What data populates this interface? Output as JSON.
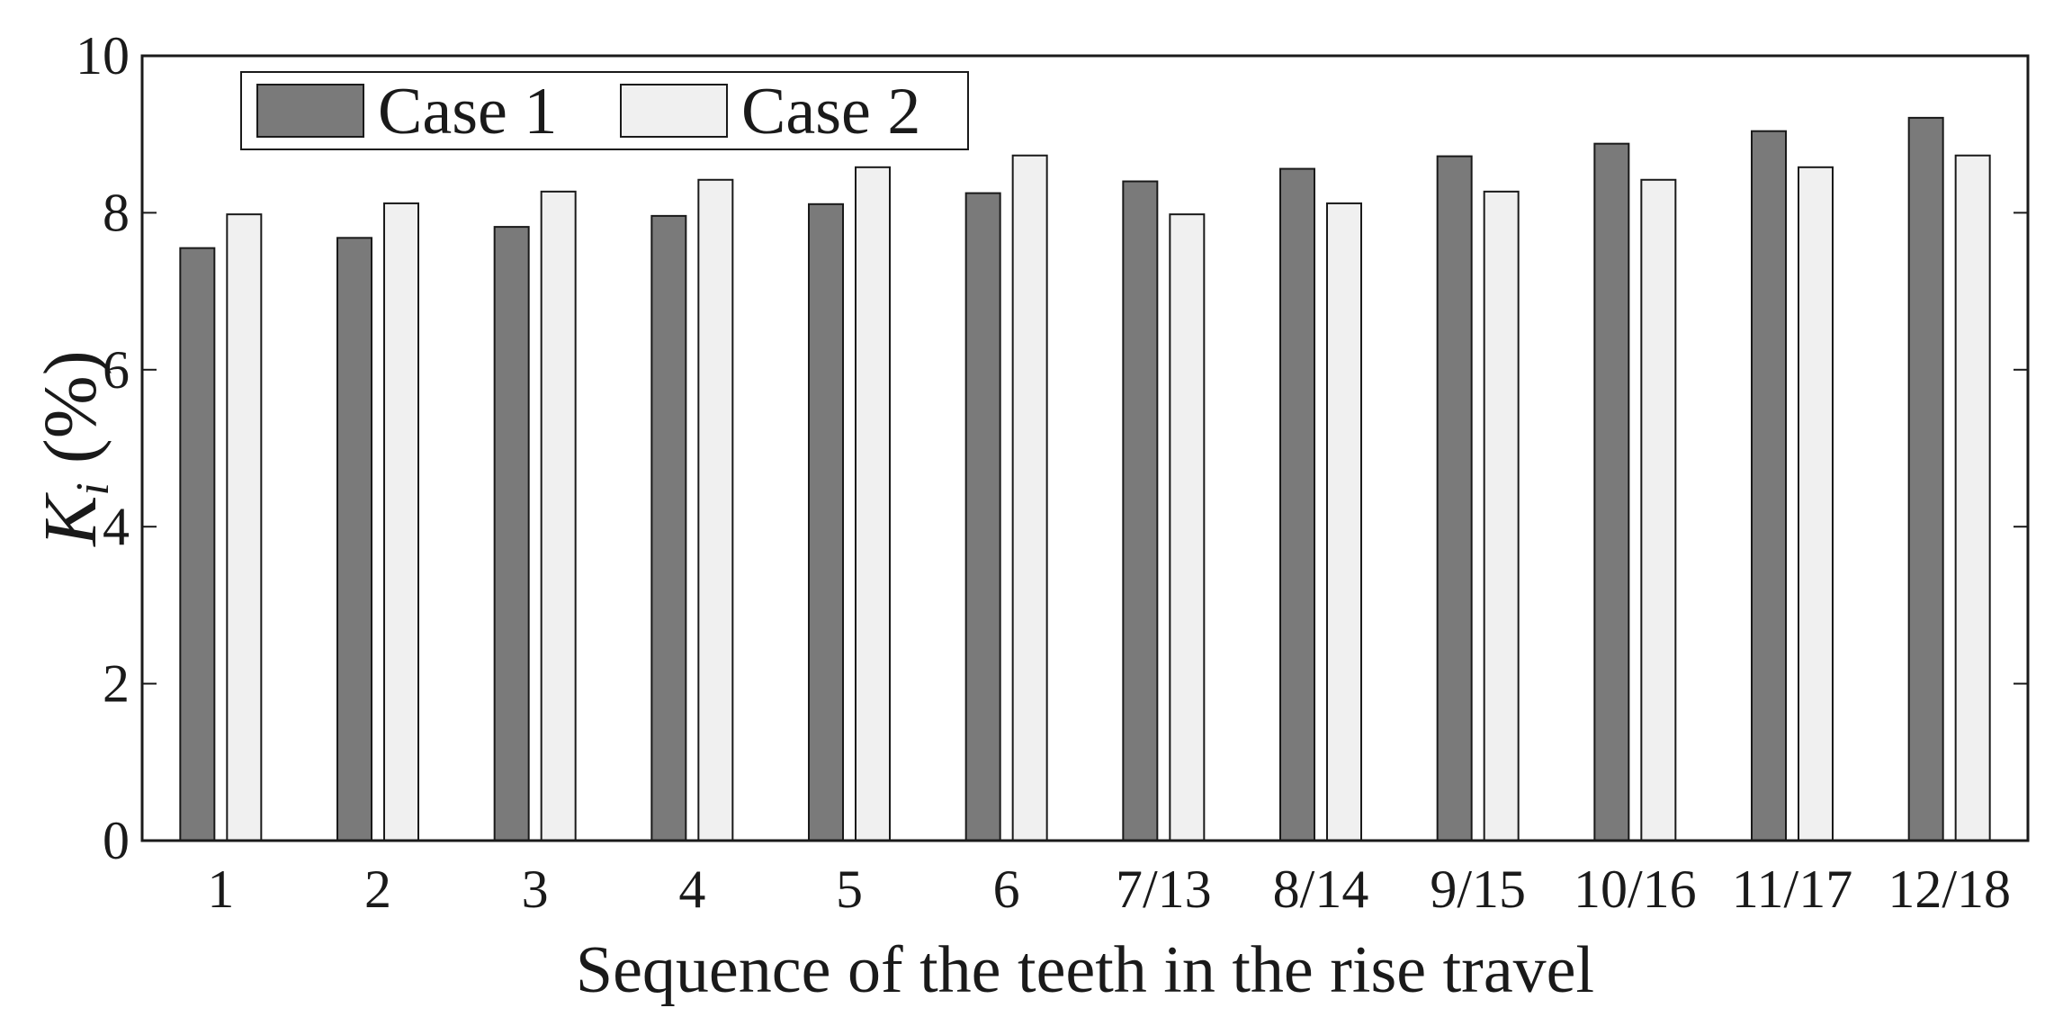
{
  "chart_data": {
    "type": "bar",
    "title": "",
    "xlabel": "Sequence of the teeth in the rise travel",
    "ylabel": {
      "symbol": "K",
      "subscript": "i",
      "unit": " (%)"
    },
    "ylim": [
      0,
      10
    ],
    "yticks": [
      "0",
      "2",
      "4",
      "6",
      "8",
      "10"
    ],
    "grid": false,
    "legend_position": "top-left",
    "categories": [
      "1",
      "2",
      "3",
      "4",
      "5",
      "6",
      "7/13",
      "8/14",
      "9/15",
      "10/16",
      "11/17",
      "12/18"
    ],
    "series": [
      {
        "name": "Case 1",
        "color": "#7a7a7a",
        "values": [
          7.55,
          7.68,
          7.82,
          7.96,
          8.11,
          8.25,
          8.4,
          8.56,
          8.72,
          8.88,
          9.04,
          9.21
        ]
      },
      {
        "name": "Case 2",
        "color": "#f0f0f0",
        "values": [
          7.98,
          8.12,
          8.27,
          8.42,
          8.58,
          8.73,
          7.98,
          8.12,
          8.27,
          8.42,
          8.58,
          8.73
        ]
      }
    ]
  }
}
